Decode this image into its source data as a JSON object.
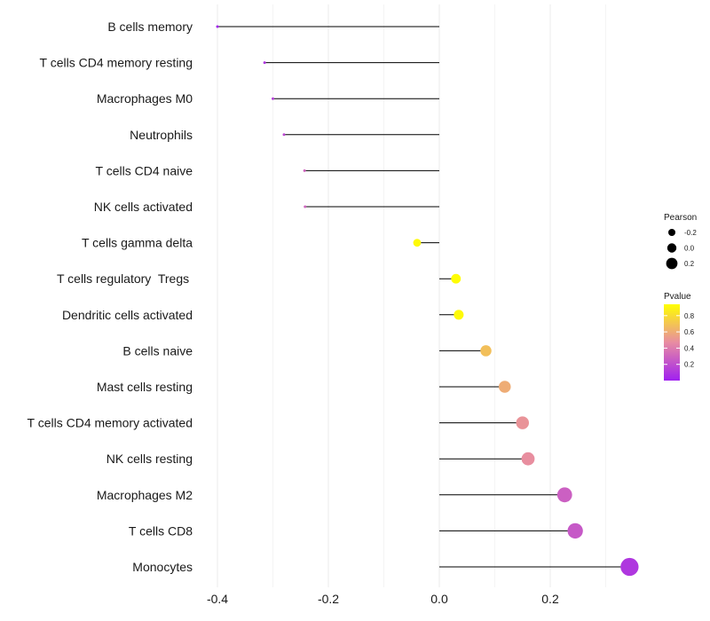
{
  "chart_data": {
    "type": "lollipop",
    "title": "",
    "xlabel": "",
    "ylabel": "",
    "xlim": [
      -0.4,
      0.35
    ],
    "x_ticks": [
      -0.4,
      -0.2,
      0.0,
      0.2
    ],
    "x_tick_labels": [
      "-0.4",
      "-0.2",
      "0.0",
      "0.2"
    ],
    "categories": [
      "B cells memory",
      "T cells CD4 memory resting",
      "Macrophages M0",
      "Neutrophils",
      "T cells CD4 naive",
      "NK cells activated",
      "T cells gamma delta",
      "T cells regulatory  Tregs ",
      "Dendritic cells activated",
      "B cells naive",
      "Mast cells resting",
      "T cells CD4 memory activated",
      "NK cells resting",
      "Macrophages M2",
      "T cells CD8",
      "Monocytes"
    ],
    "pearson": [
      -0.4,
      -0.315,
      -0.3,
      -0.28,
      -0.243,
      -0.242,
      -0.04,
      0.03,
      0.035,
      0.084,
      0.118,
      0.15,
      0.16,
      0.226,
      0.245,
      0.343
    ],
    "pvalue": [
      0.02,
      0.1,
      0.14,
      0.18,
      0.3,
      0.3,
      0.92,
      0.93,
      0.92,
      0.68,
      0.6,
      0.5,
      0.48,
      0.28,
      0.25,
      0.1
    ],
    "legend": {
      "size_title": "Pearson",
      "size_labels": [
        "-0.2",
        "0.0",
        "0.2"
      ],
      "size_values": [
        -0.2,
        0.0,
        0.2
      ],
      "color_title": "Pvalue",
      "color_labels": [
        "0.8",
        "0.6",
        "0.4",
        "0.2"
      ],
      "color_values": [
        0.8,
        0.6,
        0.4,
        0.2
      ],
      "color_range": [
        0.0,
        0.94
      ],
      "position": "right"
    },
    "colors": {
      "low": "#a020f0",
      "mid": "#e88ca2",
      "high": "#ffff00",
      "stem": "#000000",
      "grid": "#ebebeb"
    }
  }
}
